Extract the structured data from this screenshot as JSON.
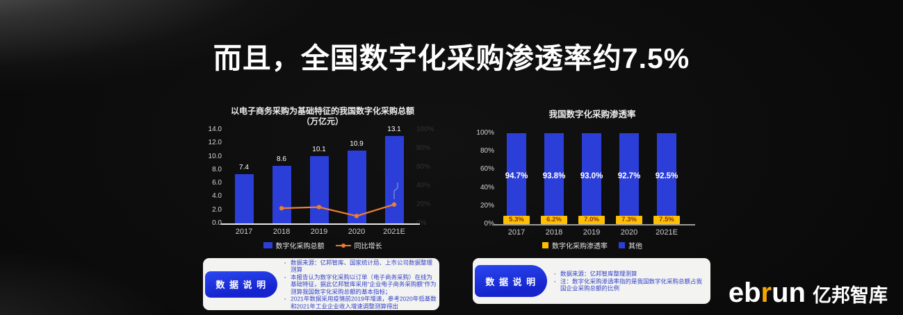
{
  "slide": {
    "title": "而且，全国数字化采购渗透率约7.5%",
    "logo": {
      "parts": [
        "eb",
        "r",
        "un"
      ],
      "cn": "亿邦智库"
    }
  },
  "colors": {
    "bar_blue": "#2b3fd8",
    "accent_yellow": "#ffc000",
    "line_orange": "#ed7d31",
    "pill_blue": "#1d2ed6",
    "note_text": "#3342c6",
    "label_on_yellow": "#8a3220",
    "background": "#0a0a0a"
  },
  "chart_data": [
    {
      "type": "bar",
      "subtype": "combo-bar-line",
      "title": "以电子商务采购为基础特征的我国数字化采购总额",
      "title_line2": "（万亿元）",
      "categories": [
        "2017",
        "2018",
        "2019",
        "2020",
        "2021E"
      ],
      "series": [
        {
          "name": "数字化采购总额",
          "type": "bar",
          "unit": "万亿元",
          "values": [
            7.4,
            8.6,
            10.1,
            10.9,
            13.1
          ],
          "labels": [
            "7.4",
            "8.6",
            "10.1",
            "10.9",
            "13.1"
          ]
        },
        {
          "name": "同比增长",
          "type": "line",
          "axis": "secondary",
          "unit": "%",
          "values": [
            null,
            16.2,
            17.4,
            7.9,
            20.2
          ],
          "estimated_from_pixels": true
        }
      ],
      "ylim": [
        0,
        14
      ],
      "yticks": [
        "0.0",
        "2.0",
        "4.0",
        "6.0",
        "8.0",
        "10.0",
        "12.0",
        "14.0"
      ],
      "ylim2": [
        0,
        100
      ],
      "yticks2": [
        "0%",
        "20%",
        "40%",
        "60%",
        "80%",
        "100%"
      ],
      "grid": false,
      "legend_position": "bottom"
    },
    {
      "type": "bar",
      "subtype": "stacked-100-percent",
      "title": "我国数字化采购渗透率",
      "categories": [
        "2017",
        "2018",
        "2019",
        "2020",
        "2021E"
      ],
      "series": [
        {
          "name": "数字化采购渗透率",
          "values": [
            5.3,
            6.2,
            7.0,
            7.3,
            7.5
          ],
          "labels": [
            "5.3%",
            "6.2%",
            "7.0%",
            "7.3%",
            "7.5%"
          ]
        },
        {
          "name": "其他",
          "values": [
            94.7,
            93.8,
            93.0,
            92.7,
            92.5
          ],
          "labels": [
            "94.7%",
            "93.8%",
            "93.0%",
            "92.7%",
            "92.5%"
          ]
        }
      ],
      "ylim": [
        0,
        100
      ],
      "yticks": [
        "0%",
        "20%",
        "40%",
        "60%",
        "80%",
        "100%"
      ],
      "grid": false,
      "legend_position": "bottom"
    }
  ],
  "notes_left": {
    "pill": "数 据 说 明",
    "bullets": [
      "数据来源：亿邦智库、国家统计局、上市公司数据整理测算",
      "本报告认为数字化采购以订单（电子商务采购）在线为基础特征，据此亿邦智库采用“企业电子商务采购额”作为测算我国数字化采购总额的基本指标；",
      "2021年数据采用疫情前2019年增速，参考2020年低基数和2021年工业企业收入增速调整测算得出"
    ]
  },
  "notes_right": {
    "pill": "数 据 说 明",
    "bullets": [
      "数据来源：亿邦智库整理测算",
      "注：数字化采购渗透率指的是我国数字化采购总额占我国企业采购总额的比例"
    ]
  }
}
